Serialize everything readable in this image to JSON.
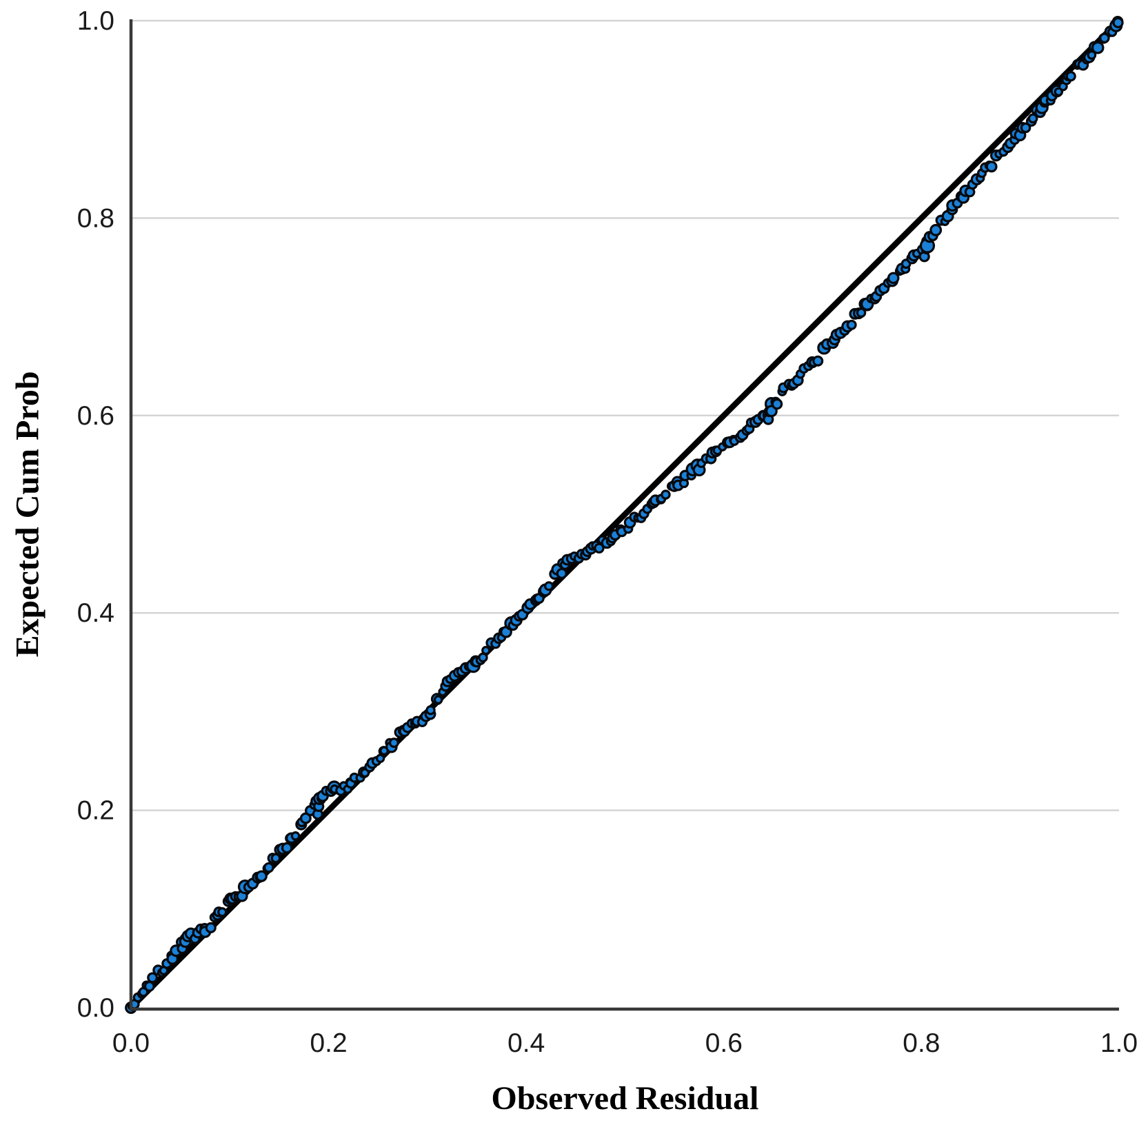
{
  "chart_data": {
    "type": "scatter",
    "title": "",
    "xlabel": "Observed Residual",
    "ylabel": "Expected Cum Prob",
    "xlim": [
      0.0,
      1.0
    ],
    "ylim": [
      0.0,
      1.0
    ],
    "x_ticks": [
      "0.0",
      "0.2",
      "0.4",
      "0.6",
      "0.8",
      "1.0"
    ],
    "y_ticks": [
      "0.0",
      "0.2",
      "0.4",
      "0.6",
      "0.8",
      "1.0"
    ],
    "grid": "horizontal-only",
    "legend": "none",
    "reference_line": {
      "from": [
        0.0,
        0.0
      ],
      "to": [
        1.0,
        1.0
      ],
      "color": "#000000"
    },
    "series": [
      {
        "name": "observed-vs-expected-cumulative-probability",
        "n_markers": 300,
        "marker": {
          "jitter_seed": 7,
          "jitter_x": 0.004,
          "jitter_y": 0.008,
          "base_radius": 6.2,
          "radius_jitter": 2.4,
          "stroke_width": 3.2
        },
        "curve": [
          [
            0.0,
            0.0
          ],
          [
            0.02,
            0.025
          ],
          [
            0.04,
            0.05
          ],
          [
            0.055,
            0.068
          ],
          [
            0.07,
            0.077
          ],
          [
            0.085,
            0.088
          ],
          [
            0.1,
            0.108
          ],
          [
            0.115,
            0.119
          ],
          [
            0.135,
            0.138
          ],
          [
            0.155,
            0.161
          ],
          [
            0.175,
            0.187
          ],
          [
            0.19,
            0.214
          ],
          [
            0.205,
            0.219
          ],
          [
            0.22,
            0.225
          ],
          [
            0.25,
            0.254
          ],
          [
            0.28,
            0.284
          ],
          [
            0.3,
            0.296
          ],
          [
            0.32,
            0.33
          ],
          [
            0.34,
            0.343
          ],
          [
            0.36,
            0.361
          ],
          [
            0.39,
            0.393
          ],
          [
            0.415,
            0.416
          ],
          [
            0.435,
            0.446
          ],
          [
            0.455,
            0.459
          ],
          [
            0.475,
            0.469
          ],
          [
            0.5,
            0.486
          ],
          [
            0.525,
            0.506
          ],
          [
            0.55,
            0.527
          ],
          [
            0.575,
            0.547
          ],
          [
            0.6,
            0.569
          ],
          [
            0.625,
            0.588
          ],
          [
            0.645,
            0.6
          ],
          [
            0.66,
            0.624
          ],
          [
            0.68,
            0.644
          ],
          [
            0.7,
            0.664
          ],
          [
            0.72,
            0.684
          ],
          [
            0.74,
            0.708
          ],
          [
            0.76,
            0.729
          ],
          [
            0.78,
            0.746
          ],
          [
            0.8,
            0.768
          ],
          [
            0.815,
            0.788
          ],
          [
            0.83,
            0.808
          ],
          [
            0.85,
            0.831
          ],
          [
            0.87,
            0.854
          ],
          [
            0.89,
            0.877
          ],
          [
            0.91,
            0.899
          ],
          [
            0.93,
            0.921
          ],
          [
            0.95,
            0.943
          ],
          [
            0.97,
            0.966
          ],
          [
            0.985,
            0.983
          ],
          [
            1.0,
            1.0
          ]
        ],
        "stacked_points": [
          [
            0.645,
            0.596
          ],
          [
            0.646,
            0.604
          ],
          [
            0.647,
            0.611
          ],
          [
            0.803,
            0.761
          ],
          [
            0.805,
            0.769
          ],
          [
            0.806,
            0.776
          ],
          [
            0.189,
            0.196
          ],
          [
            0.19,
            0.204
          ],
          [
            0.436,
            0.44
          ],
          [
            0.052,
            0.06
          ],
          [
            0.002,
            0.002
          ],
          [
            0.999,
            0.998
          ]
        ],
        "emphasis_points": [
          [
            0.806,
            0.772,
            9.5
          ],
          [
            0.191,
            0.212,
            8.0
          ],
          [
            0.648,
            0.612,
            8.0
          ],
          [
            0.997,
            0.995,
            8.0
          ],
          [
            0.055,
            0.067,
            7.5
          ],
          [
            0.745,
            0.712,
            7.5
          ],
          [
            0.922,
            0.912,
            8.0
          ]
        ]
      }
    ],
    "colors": {
      "marker_fill": "#1b80d6",
      "marker_stroke": "#06090d",
      "grid": "#d4d4d4",
      "axis": "#383838",
      "tick_text": "#1a1a1a",
      "background": "#ffffff"
    }
  }
}
